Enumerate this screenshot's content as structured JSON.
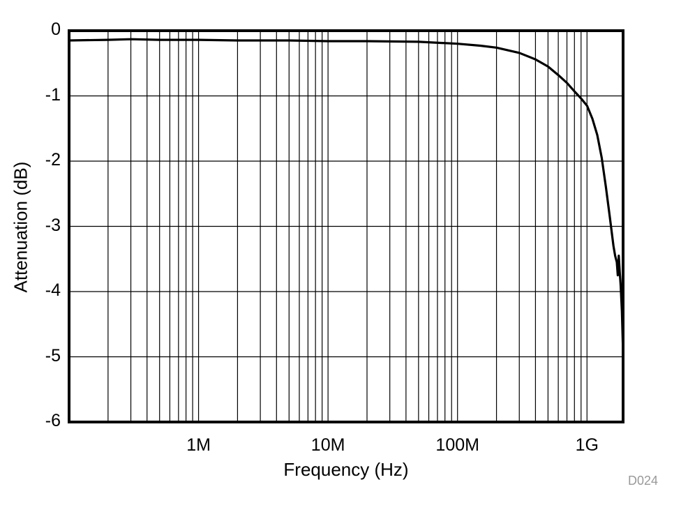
{
  "chart_data": {
    "type": "line",
    "title": "",
    "xlabel": "Frequency (Hz)",
    "ylabel": "Attenuation (dB)",
    "xscale": "log",
    "xlim": [
      100000,
      1900000000
    ],
    "ylim": [
      -6,
      0
    ],
    "grid": true,
    "legend": null,
    "x_tick_labels": [
      {
        "value": 1000000,
        "label": "1M"
      },
      {
        "value": 10000000,
        "label": "10M"
      },
      {
        "value": 100000000,
        "label": "100M"
      },
      {
        "value": 1000000000,
        "label": "1G"
      }
    ],
    "y_tick_labels": [
      {
        "value": 0,
        "label": "0"
      },
      {
        "value": -1,
        "label": "-1"
      },
      {
        "value": -2,
        "label": "-2"
      },
      {
        "value": -3,
        "label": "-3"
      },
      {
        "value": -4,
        "label": "-4"
      },
      {
        "value": -5,
        "label": "-5"
      },
      {
        "value": -6,
        "label": "-6"
      }
    ],
    "series": [
      {
        "name": "Attenuation",
        "color": "#000000",
        "x": [
          100000,
          200000,
          300000,
          500000,
          1000000,
          2000000,
          5000000,
          10000000,
          20000000,
          50000000,
          100000000,
          150000000,
          200000000,
          300000000,
          400000000,
          500000000,
          600000000,
          700000000,
          800000000,
          900000000,
          1000000000,
          1100000000,
          1200000000,
          1300000000,
          1400000000,
          1500000000,
          1600000000,
          1650000000,
          1700000000,
          1730000000,
          1760000000,
          1790000000,
          1820000000,
          1860000000,
          1900000000
        ],
        "y": [
          -0.15,
          -0.14,
          -0.13,
          -0.14,
          -0.14,
          -0.15,
          -0.15,
          -0.16,
          -0.16,
          -0.17,
          -0.2,
          -0.23,
          -0.26,
          -0.34,
          -0.44,
          -0.55,
          -0.68,
          -0.8,
          -0.93,
          -1.04,
          -1.15,
          -1.35,
          -1.6,
          -1.95,
          -2.4,
          -2.85,
          -3.3,
          -3.45,
          -3.55,
          -3.75,
          -3.45,
          -3.7,
          -3.9,
          -4.3,
          -4.95
        ]
      }
    ]
  },
  "figure_id": "D024"
}
